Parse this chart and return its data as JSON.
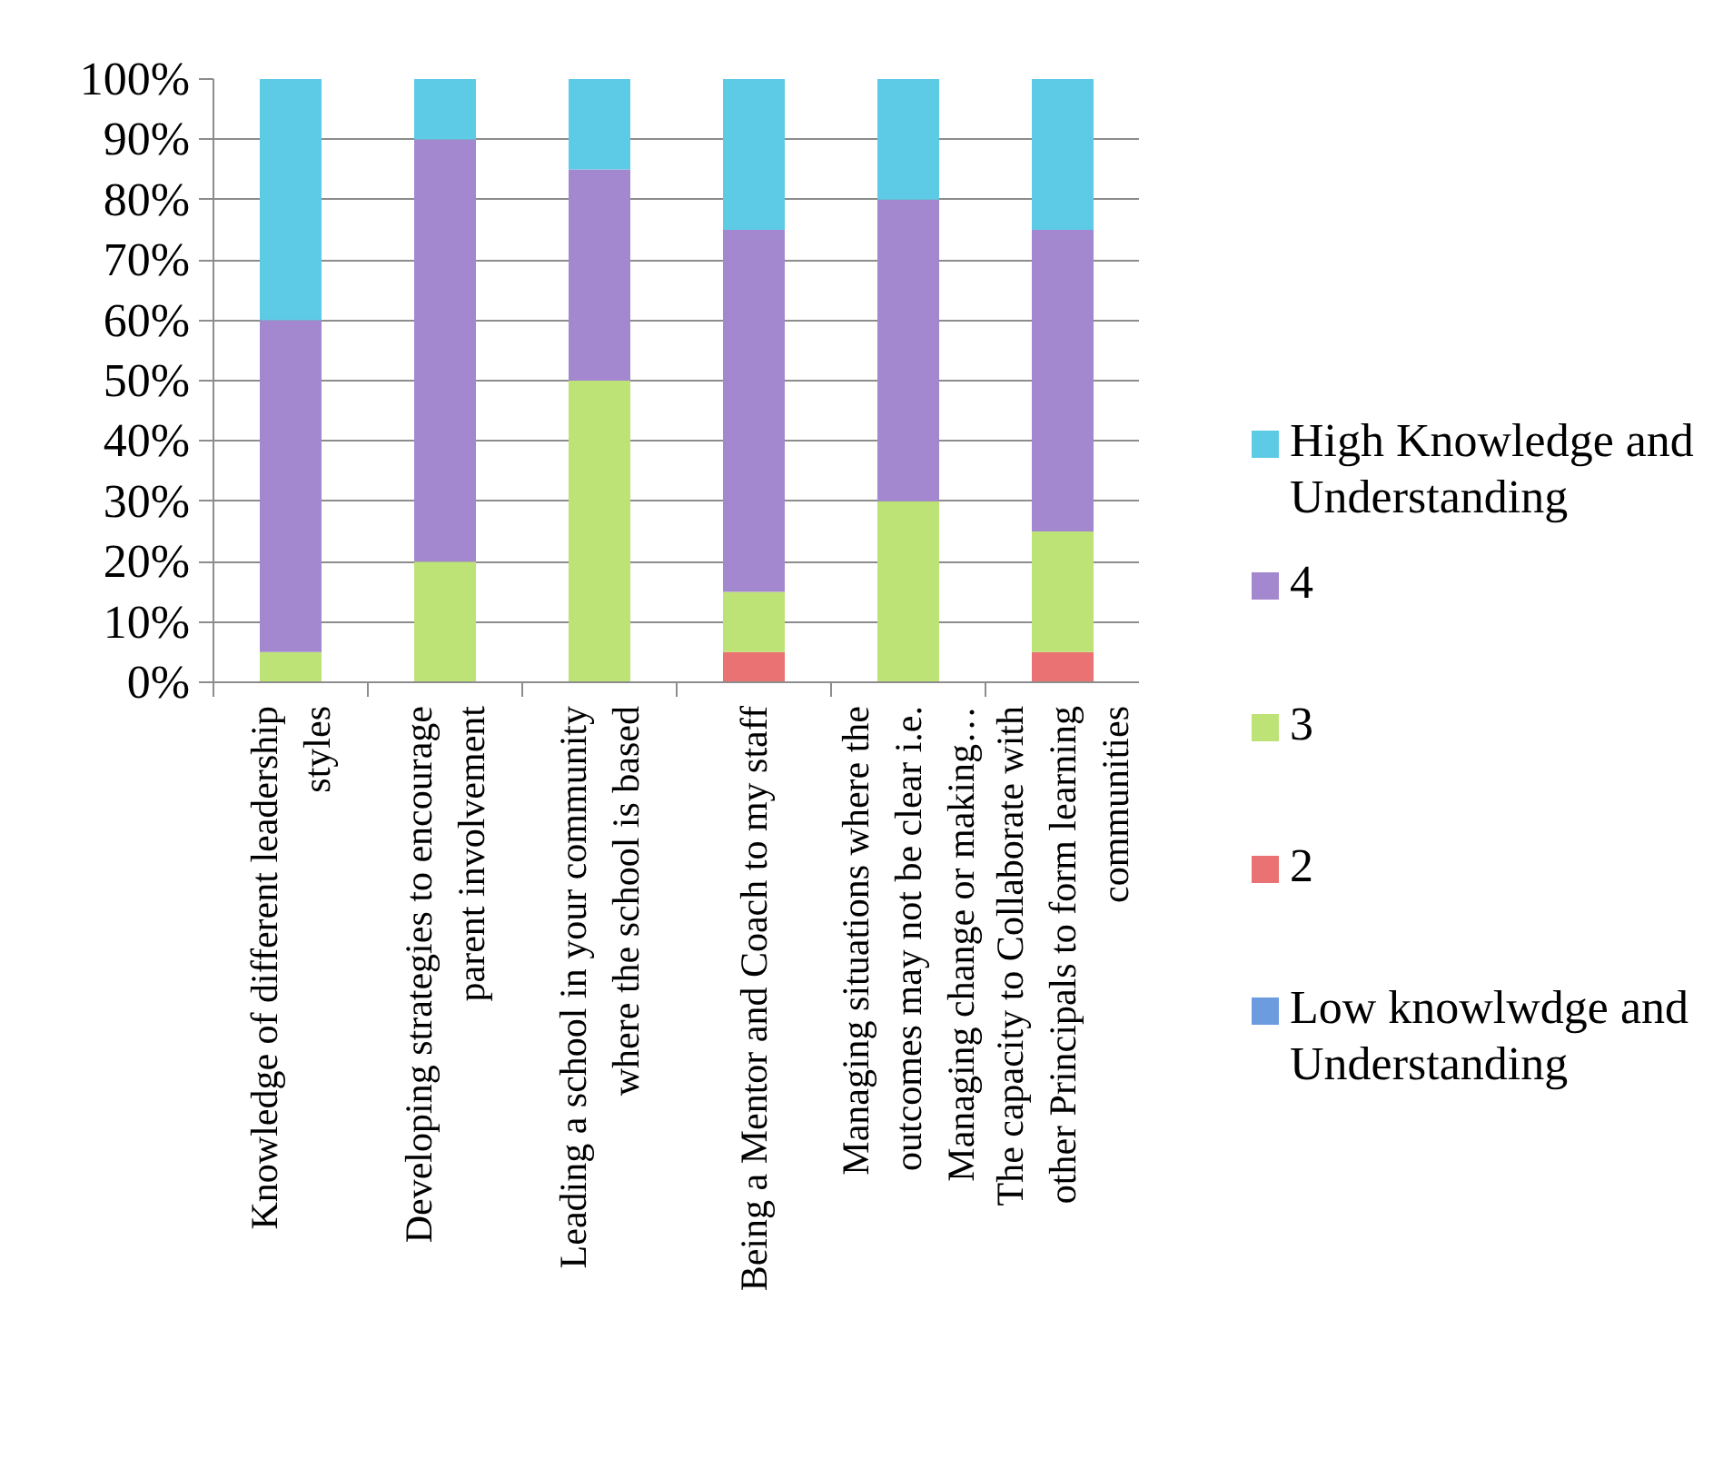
{
  "chart_data": {
    "type": "bar",
    "stacked": true,
    "categories": [
      "Knowledge of different leadership styles",
      "Developing strategies to encourage parent involvement",
      "Leading a school in your community where the school is based",
      "Being a Mentor and Coach to my staff",
      "Managing situations where the outcomes may not be clear i.e. Managing change or making…",
      "The capacity to Collaborate with other Principals to form learning communities"
    ],
    "series": [
      {
        "name": "Low knowlwdge and Understanding",
        "color": "#6d9be0",
        "values": [
          0,
          0,
          0,
          0,
          0,
          0
        ]
      },
      {
        "name": "2",
        "color": "#ea7272",
        "values": [
          0,
          0,
          0,
          5,
          0,
          5
        ]
      },
      {
        "name": "3",
        "color": "#bde275",
        "values": [
          5,
          20,
          50,
          10,
          30,
          20
        ]
      },
      {
        "name": "4",
        "color": "#a388d0",
        "values": [
          55,
          70,
          35,
          60,
          50,
          50
        ]
      },
      {
        "name": "High Knowledge and Understanding",
        "color": "#5ecbe6",
        "values": [
          40,
          10,
          15,
          25,
          20,
          25
        ]
      }
    ],
    "ylim": [
      0,
      100
    ],
    "yticks": [
      {
        "value": 0,
        "label": "0%"
      },
      {
        "value": 10,
        "label": "10%"
      },
      {
        "value": 20,
        "label": "20%"
      },
      {
        "value": 30,
        "label": "30%"
      },
      {
        "value": 40,
        "label": "40%"
      },
      {
        "value": 50,
        "label": "50%"
      },
      {
        "value": 60,
        "label": "60%"
      },
      {
        "value": 70,
        "label": "70%"
      },
      {
        "value": 80,
        "label": "80%"
      },
      {
        "value": 90,
        "label": "90%"
      },
      {
        "value": 100,
        "label": "100%"
      }
    ],
    "grid": "y",
    "legend": "right"
  }
}
